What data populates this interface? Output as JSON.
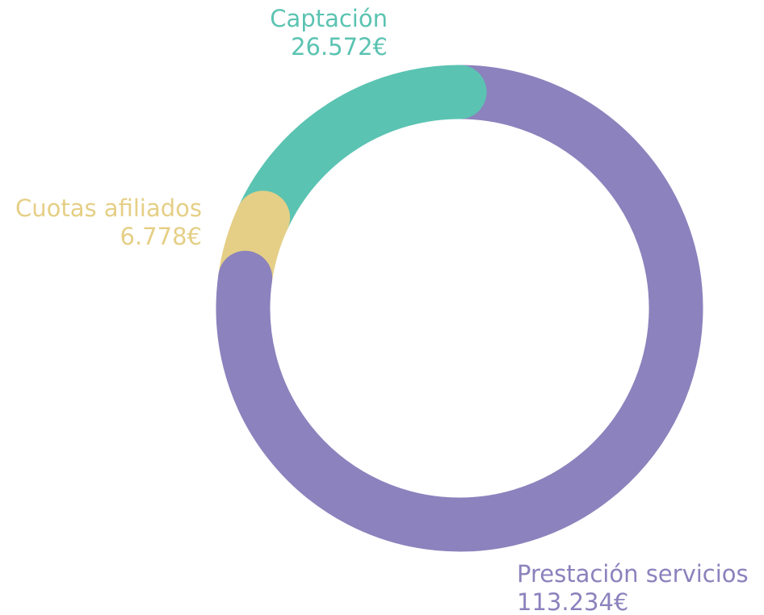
{
  "chart_data": {
    "type": "donut",
    "categories": [
      "Prestación servicios",
      "Cuotas afiliados",
      "Captación"
    ],
    "values": [
      113234,
      6778,
      26572
    ],
    "value_labels": [
      "113.234€",
      "6.778€",
      "26.572€"
    ],
    "colors": [
      "#8c82bd",
      "#e5cf86",
      "#5bc3b2"
    ]
  }
}
